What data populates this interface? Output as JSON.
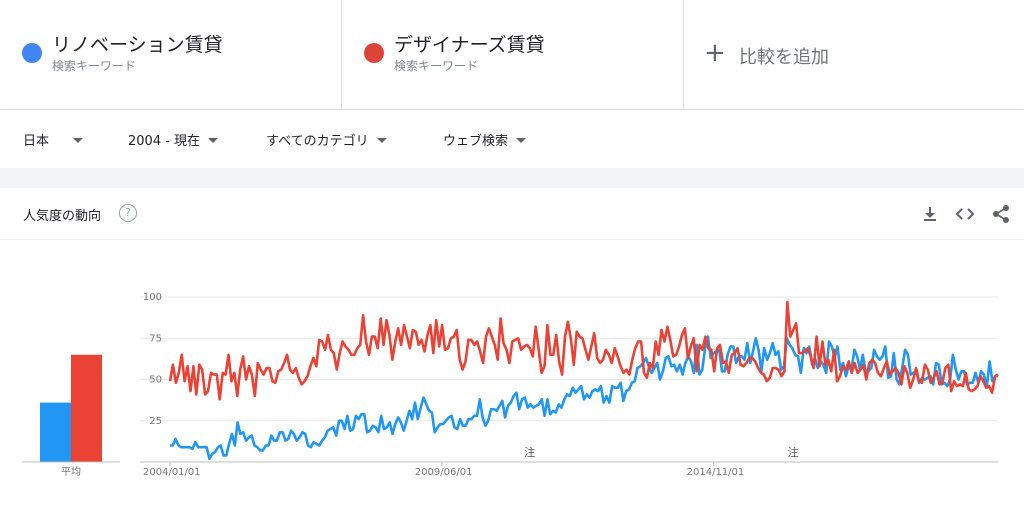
{
  "terms": [
    {
      "name": "リノベーション賃貸",
      "sub": "検索キーワード",
      "color": "#4285f4"
    },
    {
      "name": "デザイナーズ賃貸",
      "sub": "検索キーワード",
      "color": "#db4437"
    }
  ],
  "add_term": {
    "plus": "+",
    "label": "比較を追加"
  },
  "filters": {
    "geo": "日本",
    "time": "2004 - 現在",
    "category": "すべてのカテゴリ",
    "property": "ウェブ検索"
  },
  "card": {
    "title": "人気度の動向",
    "help": "?"
  },
  "icons": {
    "help": "help-circle-icon",
    "download": "download-icon",
    "embed": "code-icon",
    "share": "share-icon"
  },
  "chart_data": {
    "type": "line",
    "ylim": [
      0,
      100
    ],
    "yticks": [
      "25",
      "50",
      "75",
      "100"
    ],
    "xticks": [
      {
        "label": "2004/01/01",
        "month": 0
      },
      {
        "label": "2009/06/01",
        "month": 65
      },
      {
        "label": "2014/11/01",
        "month": 130
      }
    ],
    "x_months": 198,
    "notes": [
      {
        "text": "注",
        "month": 86
      },
      {
        "text": "注",
        "month": 149
      }
    ],
    "average": {
      "label": "平均",
      "values": [
        36,
        65
      ]
    },
    "series": [
      {
        "name": "リノベーション賃貸",
        "color": "#2196f3",
        "values": [
          10,
          10,
          14,
          10,
          9,
          9,
          9,
          9,
          8,
          12,
          9,
          9,
          9,
          9,
          2,
          5,
          6,
          9,
          10,
          4,
          4,
          11,
          17,
          10,
          24,
          17,
          18,
          13,
          15,
          16,
          10,
          9,
          7,
          7,
          10,
          10,
          16,
          13,
          13,
          18,
          18,
          13,
          14,
          19,
          17,
          13,
          15,
          18,
          17,
          10,
          9,
          12,
          11,
          10,
          13,
          15,
          19,
          20,
          21,
          16,
          25,
          25,
          20,
          28,
          19,
          20,
          28,
          26,
          29,
          29,
          18,
          19,
          22,
          21,
          18,
          28,
          20,
          21,
          24,
          17,
          23,
          27,
          24,
          19,
          25,
          31,
          26,
          36,
          26,
          33,
          39,
          35,
          31,
          30,
          18,
          21,
          23,
          23,
          25,
          27,
          28,
          21,
          20,
          26,
          22,
          22,
          26,
          26,
          28,
          28,
          38,
          27,
          22,
          25,
          32,
          32,
          31,
          34,
          37,
          27,
          34,
          36,
          40,
          42,
          32,
          38,
          39,
          33,
          35,
          33,
          34,
          35,
          38,
          28,
          38,
          29,
          31,
          30,
          35,
          33,
          38,
          41,
          40,
          45,
          42,
          44,
          46,
          38,
          41,
          39,
          43,
          44,
          43,
          46,
          36,
          40,
          36,
          46,
          45,
          45,
          48,
          37,
          43,
          44,
          48,
          49,
          57,
          58,
          60,
          63,
          58,
          54,
          57,
          60,
          50,
          55,
          63,
          64,
          58,
          59,
          55,
          59,
          53,
          60,
          64,
          61,
          54,
          71,
          53,
          56,
          69,
          76,
          63,
          66,
          67,
          68,
          55,
          55,
          65,
          70,
          70,
          60,
          64,
          64,
          62,
          72,
          60,
          67,
          75,
          68,
          55,
          69,
          62,
          66,
          72,
          65,
          67,
          56,
          58,
          75,
          71,
          69,
          65,
          64,
          54,
          69,
          66,
          70,
          59,
          63,
          57,
          61,
          59,
          54,
          73,
          70,
          63,
          70,
          56,
          60,
          52,
          58,
          56,
          68,
          64,
          56,
          65,
          55,
          55,
          57,
          68,
          64,
          62,
          64,
          70,
          51,
          52,
          66,
          50,
          47,
          57,
          68,
          65,
          53,
          54,
          55,
          48,
          51,
          50,
          51,
          52,
          47,
          60,
          59,
          47,
          48,
          46,
          50,
          65,
          56,
          50,
          55,
          55,
          47,
          48,
          48,
          54,
          48,
          55,
          53,
          45,
          61,
          49,
          52,
          52
        ]
      },
      {
        "name": "デザイナーズ賃貸",
        "color": "#ea4335",
        "values": [
          49,
          59,
          48,
          54,
          65,
          49,
          58,
          43,
          58,
          41,
          59,
          56,
          41,
          43,
          54,
          53,
          53,
          38,
          54,
          53,
          65,
          49,
          54,
          40,
          56,
          64,
          50,
          58,
          53,
          40,
          60,
          56,
          53,
          57,
          57,
          49,
          48,
          55,
          56,
          60,
          65,
          56,
          54,
          57,
          51,
          47,
          49,
          52,
          58,
          63,
          58,
          74,
          73,
          68,
          77,
          68,
          66,
          56,
          66,
          73,
          70,
          68,
          65,
          65,
          69,
          71,
          89,
          73,
          65,
          76,
          76,
          69,
          87,
          71,
          86,
          77,
          62,
          73,
          81,
          71,
          83,
          76,
          69,
          80,
          79,
          71,
          74,
          67,
          77,
          83,
          66,
          86,
          70,
          83,
          68,
          69,
          75,
          76,
          80,
          62,
          56,
          61,
          74,
          74,
          71,
          73,
          67,
          60,
          76,
          81,
          76,
          71,
          62,
          87,
          72,
          68,
          60,
          73,
          74,
          75,
          68,
          70,
          71,
          69,
          64,
          82,
          68,
          54,
          58,
          83,
          65,
          65,
          77,
          61,
          53,
          76,
          85,
          75,
          59,
          79,
          76,
          75,
          68,
          62,
          70,
          78,
          63,
          60,
          62,
          68,
          65,
          60,
          69,
          64,
          58,
          54,
          56,
          53,
          62,
          69,
          73,
          73,
          54,
          51,
          60,
          57,
          73,
          65,
          80,
          73,
          82,
          74,
          64,
          65,
          70,
          77,
          81,
          63,
          70,
          75,
          55,
          71,
          68,
          76,
          69,
          68,
          55,
          69,
          71,
          60,
          61,
          54,
          65,
          66,
          69,
          59,
          58,
          60,
          63,
          63,
          61,
          57,
          54,
          53,
          49,
          51,
          57,
          57,
          56,
          52,
          55,
          97,
          76,
          80,
          84,
          66,
          66,
          67,
          69,
          64,
          57,
          76,
          58,
          73,
          59,
          62,
          55,
          68,
          49,
          52,
          58,
          56,
          61,
          54,
          60,
          54,
          56,
          59,
          50,
          60,
          62,
          60,
          54,
          52,
          57,
          61,
          53,
          55,
          57,
          54,
          47,
          58,
          54,
          45,
          50,
          57,
          49,
          48,
          59,
          56,
          48,
          51,
          55,
          47,
          48,
          57,
          59,
          43,
          49,
          46,
          47,
          46,
          54,
          44,
          43,
          44,
          46,
          52,
          49,
          45,
          46,
          42,
          52,
          53
        ]
      }
    ]
  }
}
